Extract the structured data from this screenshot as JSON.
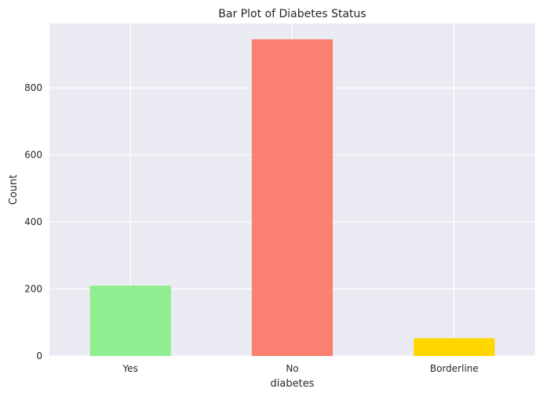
{
  "chart_data": {
    "type": "bar",
    "title": "Bar Plot of Diabetes Status",
    "xlabel": "diabetes",
    "ylabel": "Count",
    "categories": [
      "Yes",
      "No",
      "Borderline"
    ],
    "values": [
      210,
      945,
      53
    ],
    "colors": [
      "#90ee90",
      "#fa8072",
      "#ffd700"
    ],
    "ylim": [
      0,
      992
    ],
    "yticks": [
      0,
      200,
      400,
      600,
      800
    ],
    "grid": true,
    "background": "#eaeaf2",
    "grid_color": "#ffffff",
    "legend": null
  }
}
